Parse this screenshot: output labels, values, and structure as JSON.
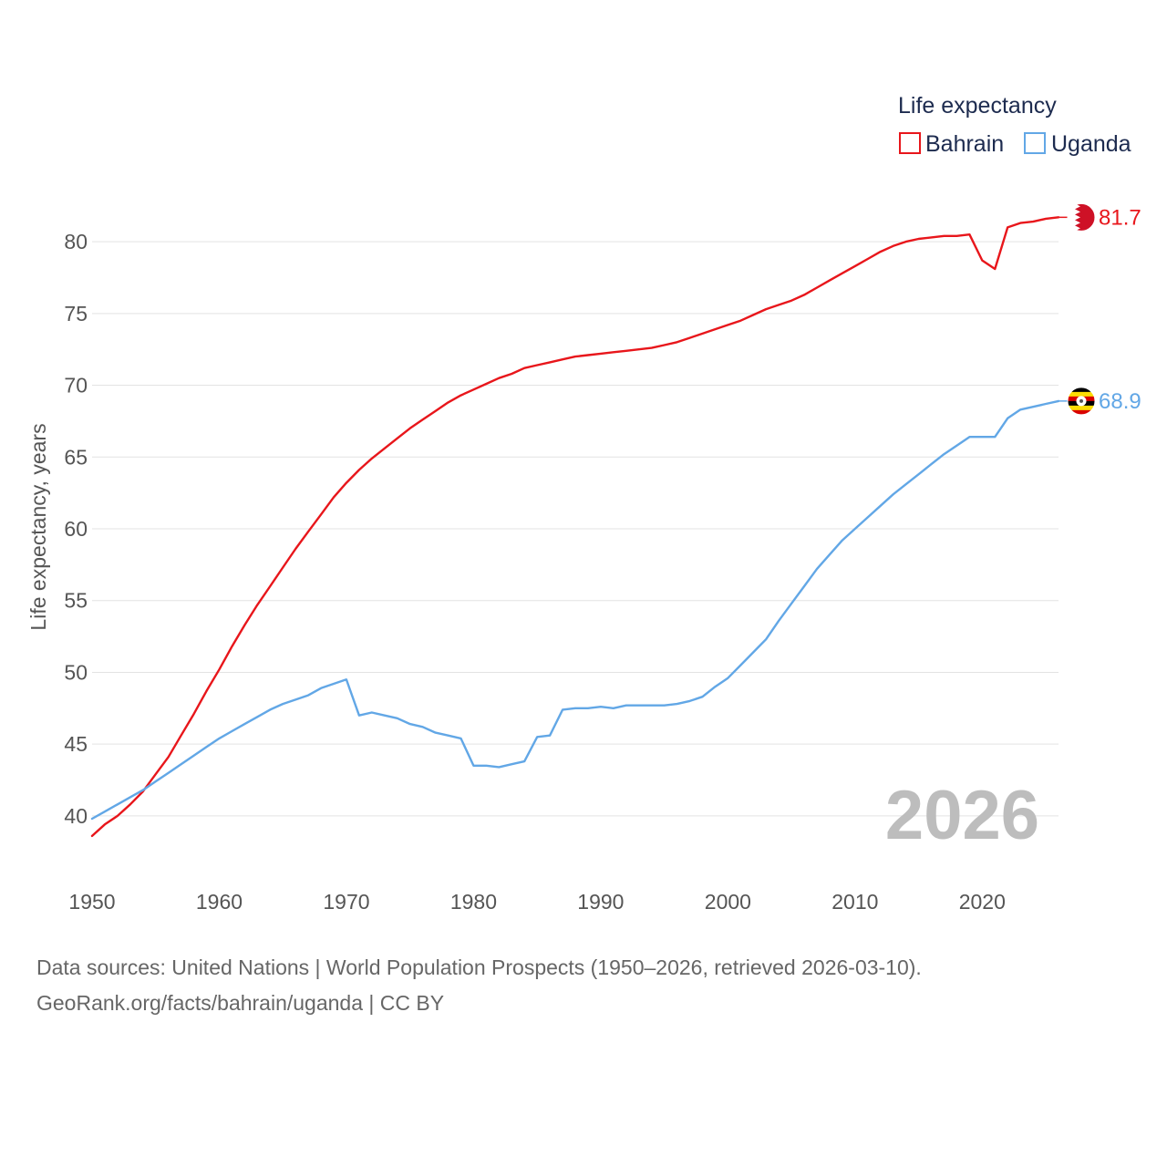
{
  "chart_data": {
    "type": "line",
    "title": "",
    "xlabel": "",
    "ylabel": "Life expectancy, years",
    "xlim": [
      1950,
      2026
    ],
    "ylim": [
      36.5,
      83.5
    ],
    "x_ticks": [
      1950,
      1960,
      1970,
      1980,
      1990,
      2000,
      2010,
      2020
    ],
    "y_ticks": [
      40,
      45,
      50,
      55,
      60,
      65,
      70,
      75,
      80
    ],
    "grid": true,
    "legend": {
      "title": "Life expectancy",
      "position": "top-right"
    },
    "current_year": "2026",
    "x": [
      1950,
      1951,
      1952,
      1953,
      1954,
      1955,
      1956,
      1957,
      1958,
      1959,
      1960,
      1961,
      1962,
      1963,
      1964,
      1965,
      1966,
      1967,
      1968,
      1969,
      1970,
      1971,
      1972,
      1973,
      1974,
      1975,
      1976,
      1977,
      1978,
      1979,
      1980,
      1981,
      1982,
      1983,
      1984,
      1985,
      1986,
      1987,
      1988,
      1989,
      1990,
      1991,
      1992,
      1993,
      1994,
      1995,
      1996,
      1997,
      1998,
      1999,
      2000,
      2001,
      2002,
      2003,
      2004,
      2005,
      2006,
      2007,
      2008,
      2009,
      2010,
      2011,
      2012,
      2013,
      2014,
      2015,
      2016,
      2017,
      2018,
      2019,
      2020,
      2021,
      2022,
      2023,
      2024,
      2025,
      2026
    ],
    "series": [
      {
        "name": "Bahrain",
        "color": "#e8161b",
        "end_label": "81.7",
        "flag": "bahrain-flag",
        "values": [
          38.6,
          39.4,
          40.0,
          40.8,
          41.7,
          42.9,
          44.1,
          45.6,
          47.1,
          48.7,
          50.2,
          51.8,
          53.3,
          54.7,
          56.0,
          57.3,
          58.6,
          59.8,
          61.0,
          62.2,
          63.2,
          64.1,
          64.9,
          65.6,
          66.3,
          67.0,
          67.6,
          68.2,
          68.8,
          69.3,
          69.7,
          70.1,
          70.5,
          70.8,
          71.2,
          71.4,
          71.6,
          71.8,
          72.0,
          72.1,
          72.2,
          72.3,
          72.4,
          72.5,
          72.6,
          72.8,
          73.0,
          73.3,
          73.6,
          73.9,
          74.2,
          74.5,
          74.9,
          75.3,
          75.6,
          75.9,
          76.3,
          76.8,
          77.3,
          77.8,
          78.3,
          78.8,
          79.3,
          79.7,
          80.0,
          80.2,
          80.3,
          80.4,
          80.4,
          80.5,
          78.7,
          78.1,
          81.0,
          81.3,
          81.4,
          81.6,
          81.7
        ]
      },
      {
        "name": "Uganda",
        "color": "#62a7e6",
        "end_label": "68.9",
        "flag": "uganda-flag",
        "values": [
          39.8,
          40.3,
          40.8,
          41.3,
          41.8,
          42.4,
          43.0,
          43.6,
          44.2,
          44.8,
          45.4,
          45.9,
          46.4,
          46.9,
          47.4,
          47.8,
          48.1,
          48.4,
          48.9,
          49.2,
          49.5,
          47.0,
          47.2,
          47.0,
          46.8,
          46.4,
          46.2,
          45.8,
          45.6,
          45.4,
          43.5,
          43.5,
          43.4,
          43.6,
          43.8,
          45.5,
          45.6,
          47.4,
          47.5,
          47.5,
          47.6,
          47.5,
          47.7,
          47.7,
          47.7,
          47.7,
          47.8,
          48.0,
          48.3,
          49.0,
          49.6,
          50.5,
          51.4,
          52.3,
          53.6,
          54.8,
          56.0,
          57.2,
          58.2,
          59.2,
          60.0,
          60.8,
          61.6,
          62.4,
          63.1,
          63.8,
          64.5,
          65.2,
          65.8,
          66.4,
          66.4,
          66.4,
          67.7,
          68.3,
          68.5,
          68.7,
          68.9
        ]
      }
    ]
  },
  "footer": {
    "sources": "Data sources: United Nations | World Population Prospects (1950–2026, retrieved 2026-03-10).",
    "credit": "GeoRank.org/facts/bahrain/uganda | CC BY"
  }
}
